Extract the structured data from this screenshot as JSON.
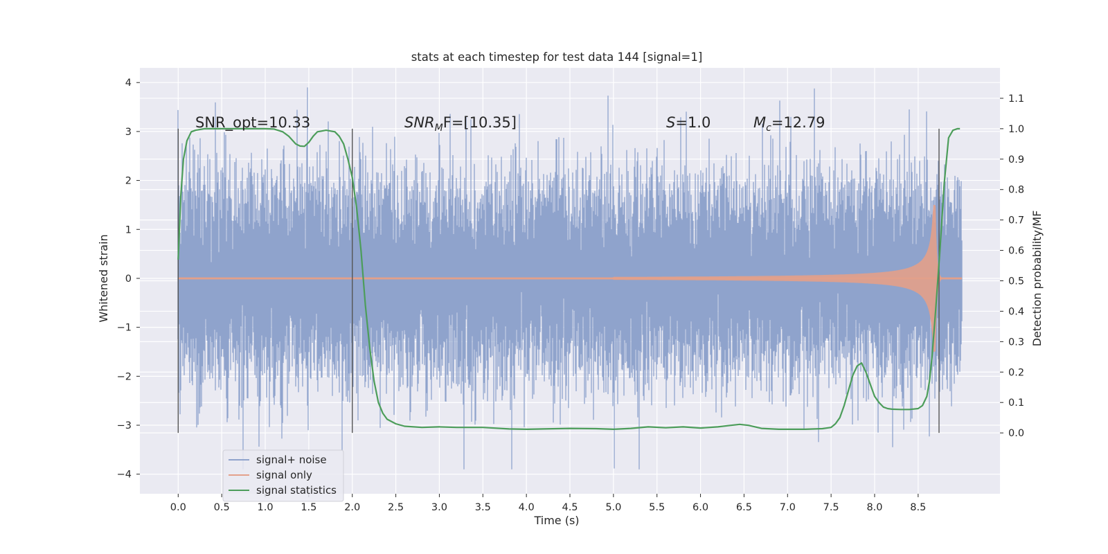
{
  "chart_data": {
    "type": "line",
    "title": "stats at each timestep for test data 144 [signal=1]",
    "xlabel": "Time (s)",
    "ylabel": "Whitened strain",
    "ylabel_right": "Detection probability/MF",
    "xlim": [
      -0.44,
      9.44
    ],
    "ylim": [
      -4.4,
      4.3
    ],
    "ylim_right": [
      -0.2,
      1.2
    ],
    "x_ticks": [
      "0.0",
      "0.5",
      "1.0",
      "1.5",
      "2.0",
      "2.5",
      "3.0",
      "3.5",
      "4.0",
      "4.5",
      "5.0",
      "5.5",
      "6.0",
      "6.5",
      "7.0",
      "7.5",
      "8.0",
      "8.5"
    ],
    "x_tick_values": [
      0,
      0.5,
      1,
      1.5,
      2,
      2.5,
      3,
      3.5,
      4,
      4.5,
      5,
      5.5,
      6,
      6.5,
      7,
      7.5,
      8,
      8.5
    ],
    "y_ticks": [
      "−4",
      "−3",
      "−2",
      "−1",
      "0",
      "1",
      "2",
      "3",
      "4"
    ],
    "y_tick_values": [
      -4,
      -3,
      -2,
      -1,
      0,
      1,
      2,
      3,
      4
    ],
    "y_right_ticks": [
      "0.0",
      "0.1",
      "0.2",
      "0.3",
      "0.4",
      "0.5",
      "0.6",
      "0.7",
      "0.8",
      "0.9",
      "1.0",
      "1.1"
    ],
    "y_right_tick_values": [
      0,
      0.1,
      0.2,
      0.3,
      0.4,
      0.5,
      0.6,
      0.7,
      0.8,
      0.9,
      1.0,
      1.1
    ],
    "grid": true,
    "legend_position": "lower-left",
    "annotations": {
      "snr_opt": "SNR_opt=10.33",
      "snr_mf_main": "SNR",
      "snr_mf_sub": "M",
      "snr_mf_rest": "F=[10.35]",
      "s_main": "S",
      "s_rest": "=1.0",
      "mc_main": "M",
      "mc_sub": "c",
      "mc_rest": "=12.79"
    },
    "window_markers_s": [
      0.0,
      2.0,
      8.74
    ],
    "series": [
      {
        "name": "signal+ noise",
        "color": "#8fa3cc",
        "axis": "left",
        "description_values": {
          "t_start": 0.0,
          "t_end": 9.0,
          "sigma": 1.0,
          "min": -3.9,
          "max": 3.9
        }
      },
      {
        "name": "signal only",
        "color": "#e3a08a",
        "axis": "left",
        "chirp": {
          "t_merger": 8.7,
          "peak_amplitude": 1.5,
          "t_start_visible": 5.0
        }
      },
      {
        "name": "signal statistics",
        "color": "#4c9d5a",
        "axis": "right",
        "x": [
          0.0,
          0.03,
          0.06,
          0.1,
          0.15,
          0.2,
          0.3,
          0.5,
          0.7,
          0.9,
          1.0,
          1.1,
          1.2,
          1.27,
          1.35,
          1.4,
          1.45,
          1.5,
          1.55,
          1.6,
          1.7,
          1.8,
          1.85,
          1.9,
          1.95,
          2.0,
          2.05,
          2.1,
          2.15,
          2.2,
          2.25,
          2.3,
          2.35,
          2.4,
          2.5,
          2.6,
          2.8,
          3.0,
          3.2,
          3.5,
          3.8,
          4.0,
          4.2,
          4.5,
          4.8,
          5.0,
          5.2,
          5.4,
          5.6,
          5.8,
          6.0,
          6.2,
          6.35,
          6.45,
          6.55,
          6.7,
          6.9,
          7.2,
          7.4,
          7.5,
          7.55,
          7.6,
          7.65,
          7.7,
          7.75,
          7.8,
          7.85,
          7.9,
          7.95,
          8.0,
          8.05,
          8.1,
          8.15,
          8.2,
          8.3,
          8.4,
          8.5,
          8.55,
          8.6,
          8.63,
          8.66,
          8.7,
          8.75,
          8.8,
          8.85,
          8.9,
          8.95,
          8.98
        ],
        "y": [
          0.57,
          0.78,
          0.9,
          0.96,
          0.99,
          0.995,
          1.0,
          1.0,
          1.0,
          1.0,
          1.0,
          0.999,
          0.99,
          0.975,
          0.95,
          0.943,
          0.942,
          0.955,
          0.975,
          0.99,
          0.995,
          0.99,
          0.975,
          0.95,
          0.9,
          0.84,
          0.74,
          0.6,
          0.42,
          0.28,
          0.17,
          0.1,
          0.065,
          0.045,
          0.03,
          0.022,
          0.018,
          0.02,
          0.018,
          0.018,
          0.013,
          0.012,
          0.013,
          0.015,
          0.014,
          0.012,
          0.015,
          0.02,
          0.017,
          0.02,
          0.016,
          0.02,
          0.025,
          0.028,
          0.025,
          0.015,
          0.012,
          0.012,
          0.014,
          0.018,
          0.03,
          0.05,
          0.09,
          0.14,
          0.19,
          0.22,
          0.23,
          0.2,
          0.16,
          0.12,
          0.1,
          0.085,
          0.08,
          0.078,
          0.077,
          0.077,
          0.08,
          0.09,
          0.12,
          0.17,
          0.25,
          0.4,
          0.6,
          0.82,
          0.97,
          0.995,
          1.0,
          1.0
        ]
      }
    ]
  }
}
